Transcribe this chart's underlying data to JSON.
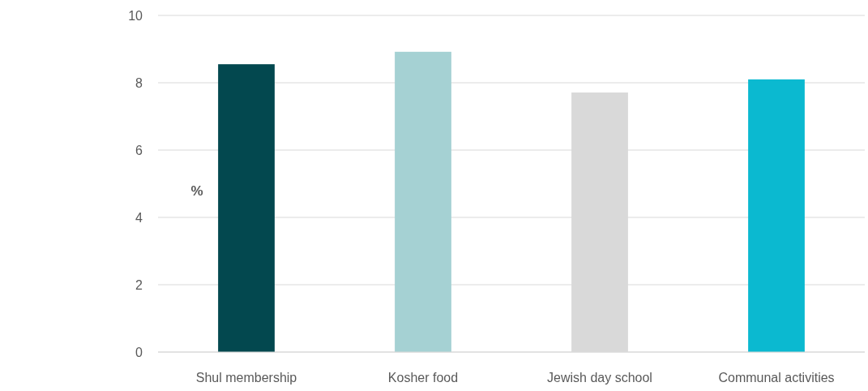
{
  "chart_data": {
    "type": "bar",
    "ylabel": "%",
    "categories": [
      "Shul membership",
      "Kosher food",
      "Jewish day school",
      "Communal activities"
    ],
    "values": [
      8.55,
      8.92,
      7.71,
      8.1
    ],
    "colors": [
      "#03484f",
      "#a5d1d3",
      "#d9d9d9",
      "#0bb9d0"
    ],
    "ylim": [
      0,
      10
    ],
    "yticks": [
      0,
      2,
      4,
      6,
      8,
      10
    ],
    "grid": "y"
  }
}
